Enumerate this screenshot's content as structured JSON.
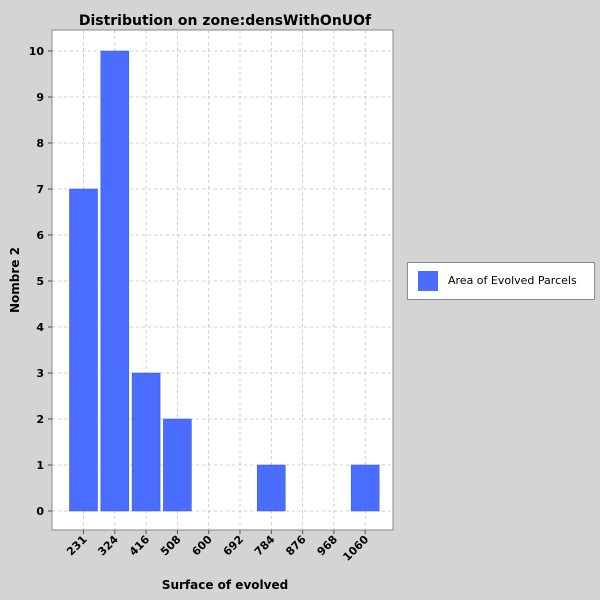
{
  "chart_data": {
    "type": "bar",
    "title": "Distribution on zone:densWithOnUOf",
    "xlabel": "Surface of evolved",
    "ylabel": "Nombre 2",
    "categories": [
      "231",
      "324",
      "416",
      "508",
      "600",
      "692",
      "784",
      "876",
      "968",
      "1060"
    ],
    "series": [
      {
        "name": "Area of Evolved Parcels",
        "values": [
          7,
          10,
          3,
          2,
          0,
          0,
          1,
          0,
          0,
          1
        ]
      }
    ],
    "ylim": [
      0,
      10
    ],
    "yticks": [
      "0",
      "1",
      "2",
      "3",
      "4",
      "5",
      "6",
      "7",
      "8",
      "9",
      "10"
    ],
    "grid": true,
    "legend_position": "right",
    "colors": {
      "bar": "#4a6cff",
      "plot_background": "#ffffff",
      "grid": "#c0c0c0",
      "page_background": "#d4d4d4"
    }
  }
}
